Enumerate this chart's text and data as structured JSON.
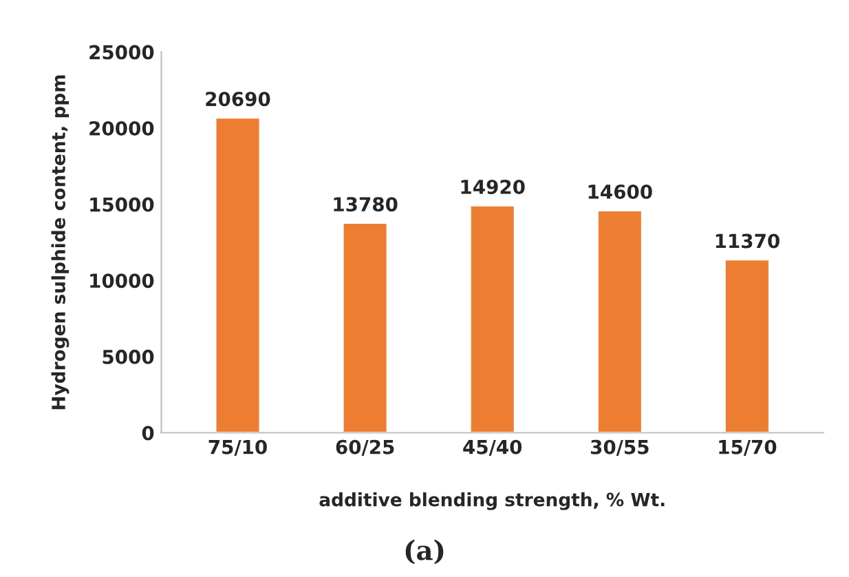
{
  "chart_data": {
    "type": "bar",
    "xlabel": "additive blending strength, % Wt.",
    "ylabel": "Hydrogen sulphide content, ppm",
    "categories": [
      "75/10",
      "60/25",
      "45/40",
      "30/55",
      "15/70"
    ],
    "values": [
      20690,
      13780,
      14920,
      14600,
      11370
    ],
    "color": "#ed7d31",
    "ylim": [
      0,
      25000
    ],
    "yticks": [
      0,
      5000,
      10000,
      15000,
      20000,
      25000
    ],
    "grid": false,
    "data_labels": true,
    "annotations": [
      "(a)"
    ]
  }
}
